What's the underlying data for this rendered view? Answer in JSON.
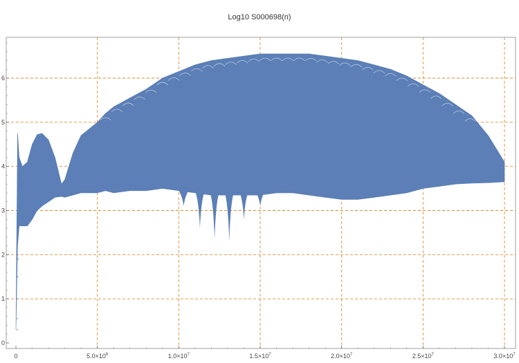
{
  "title": "Log10 S000698(n)",
  "colors": {
    "series": "#5b7fb6",
    "grid": "#e08a2c",
    "frame": "#888888",
    "background": "#ffffff"
  },
  "chart_data": {
    "type": "area",
    "title": "Log10 S000698(n)",
    "xlabel": "",
    "ylabel": "",
    "xlim": [
      0,
      30000000
    ],
    "ylim": [
      0,
      7
    ],
    "grid": true,
    "legend": "none",
    "x_ticks": [
      {
        "value": 0,
        "label": "0"
      },
      {
        "value": 5000000,
        "mantissa": "5.0",
        "exponent": "6"
      },
      {
        "value": 10000000,
        "mantissa": "1.0",
        "exponent": "7"
      },
      {
        "value": 15000000,
        "mantissa": "1.5",
        "exponent": "7"
      },
      {
        "value": 20000000,
        "mantissa": "2.0",
        "exponent": "7"
      },
      {
        "value": 25000000,
        "mantissa": "2.5",
        "exponent": "7"
      },
      {
        "value": 30000000,
        "mantissa": "3.0",
        "exponent": "7"
      }
    ],
    "y_ticks": [
      {
        "value": 0,
        "label": "0"
      },
      {
        "value": 1,
        "label": "1"
      },
      {
        "value": 2,
        "label": "2"
      },
      {
        "value": 3,
        "label": "3"
      },
      {
        "value": 4,
        "label": "4"
      },
      {
        "value": 5,
        "label": "5"
      },
      {
        "value": 6,
        "label": "6"
      }
    ],
    "series": [
      {
        "x": [
          0,
          100000,
          200000,
          400000,
          700000,
          1000000,
          1300000,
          1600000,
          2000000,
          2400000,
          2800000,
          3000000,
          3500000,
          4000000,
          4500000,
          5000000,
          5500000,
          6000000,
          7000000,
          8000000,
          9000000,
          10000000,
          11000000,
          12000000,
          13000000,
          14000000,
          15000000,
          16000000,
          17000000,
          18000000,
          19000000,
          20000000,
          21000000,
          22000000,
          23000000,
          24000000,
          25000000,
          26000000,
          27000000,
          28000000,
          29000000,
          30000000
        ],
        "upper": [
          0.3,
          4.75,
          4.2,
          4.0,
          4.1,
          4.5,
          4.72,
          4.75,
          4.6,
          4.2,
          3.6,
          3.7,
          4.3,
          4.7,
          4.85,
          5.0,
          5.2,
          5.35,
          5.55,
          5.75,
          6.0,
          6.15,
          6.3,
          6.4,
          6.45,
          6.5,
          6.55,
          6.55,
          6.55,
          6.55,
          6.5,
          6.45,
          6.4,
          6.3,
          6.2,
          6.05,
          5.85,
          5.65,
          5.4,
          5.15,
          4.7,
          4.1
        ],
        "lower": [
          0.3,
          2.2,
          2.65,
          2.65,
          2.65,
          2.8,
          3.0,
          3.1,
          3.2,
          3.3,
          3.32,
          3.3,
          3.35,
          3.4,
          3.4,
          3.4,
          3.45,
          3.4,
          3.45,
          3.45,
          3.5,
          3.45,
          3.4,
          3.35,
          3.35,
          3.35,
          3.35,
          3.4,
          3.4,
          3.35,
          3.3,
          3.25,
          3.25,
          3.3,
          3.35,
          3.4,
          3.5,
          3.55,
          3.6,
          3.62,
          3.63,
          3.65
        ]
      }
    ],
    "dips": [
      {
        "x": 10300000,
        "low": 3.1
      },
      {
        "x": 11300000,
        "low": 2.6
      },
      {
        "x": 12200000,
        "low": 2.35
      },
      {
        "x": 13100000,
        "low": 2.3
      },
      {
        "x": 14000000,
        "low": 2.8
      },
      {
        "x": 15000000,
        "low": 3.1
      }
    ]
  }
}
